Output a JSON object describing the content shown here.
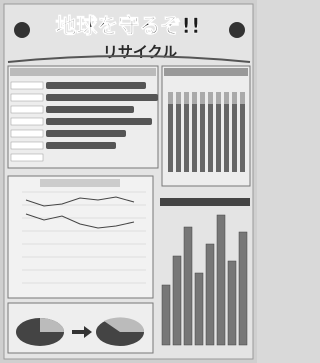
{
  "header": {
    "title": "地球を守るぞ!!",
    "subtitle": "リサイクル"
  }
}
